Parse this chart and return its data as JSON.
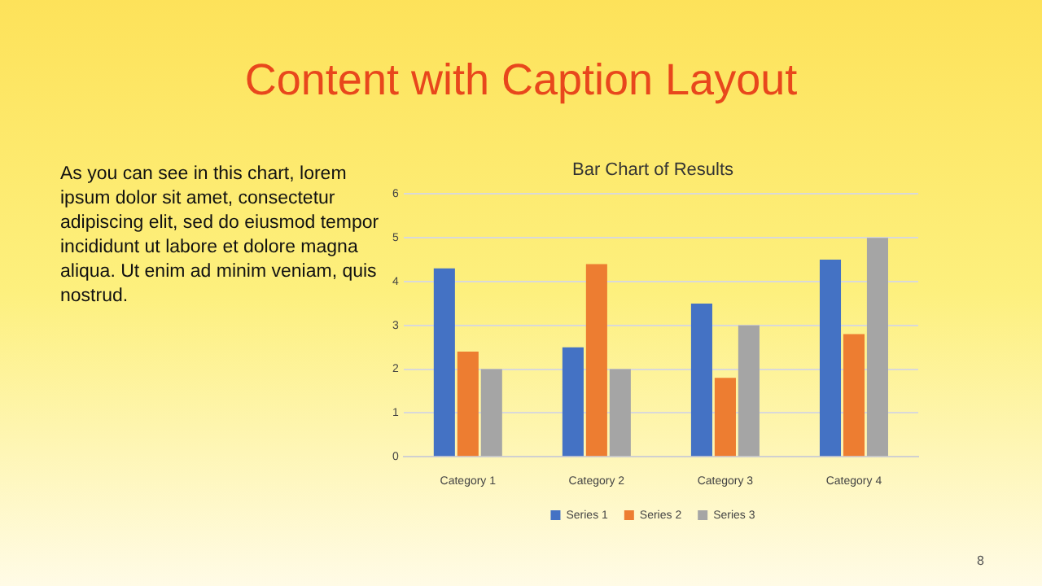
{
  "chart_data": {
    "type": "bar",
    "title": "Content with Caption Layout",
    "subtitle": "Bar Chart of Results",
    "categories": [
      "Category 1",
      "Category 2",
      "Category 3",
      "Category 4"
    ],
    "series": [
      {
        "name": "Series 1",
        "color": "#4472c4",
        "values": [
          4.3,
          2.5,
          3.5,
          4.5
        ]
      },
      {
        "name": "Series 2",
        "color": "#ed7d31",
        "values": [
          2.4,
          4.4,
          1.8,
          2.8
        ]
      },
      {
        "name": "Series 3",
        "color": "#a5a5a5",
        "values": [
          2,
          2,
          3,
          5
        ]
      }
    ],
    "ylim": [
      0,
      6
    ],
    "yticks": [
      0,
      1,
      2,
      3,
      4,
      5,
      6
    ],
    "grid": "y",
    "legend": "bottom",
    "annotations": [
      "As you can see in this chart, lorem ipsum dolor sit amet, consectetur adipiscing elit, sed do eiusmod tempor incididunt ut labore et dolore magna aliqua. Ut enim ad minim veniam, quis nostrud.",
      "8"
    ]
  }
}
